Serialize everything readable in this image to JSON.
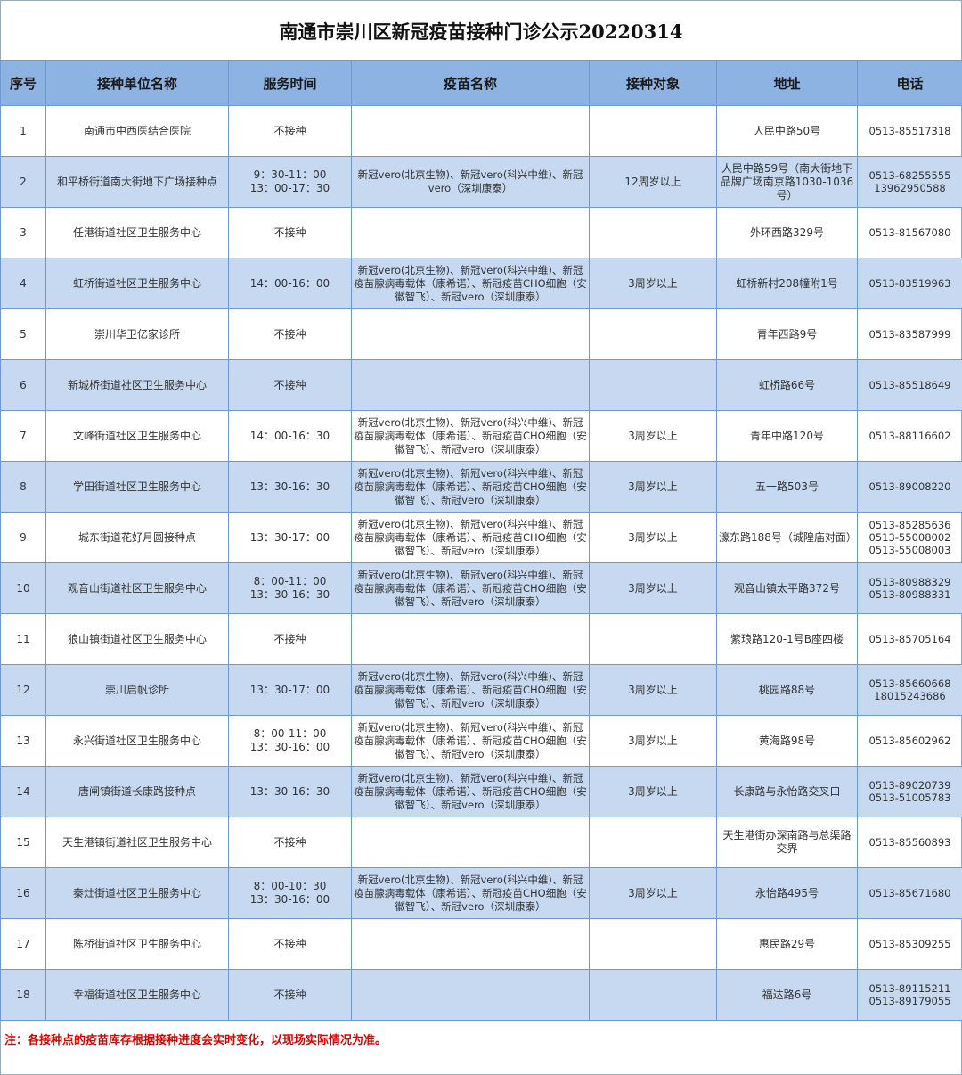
{
  "title": "南通市崇川区新冠疫苗接种门诊公示20220314",
  "columns": [
    "序号",
    "接种单位名称",
    "服务时间",
    "疫苗名称",
    "接种对象",
    "地址",
    "电话"
  ],
  "rows": [
    {
      "no": "1",
      "name": "南通市中西医结合医院",
      "time": "不接种",
      "vaccine": "",
      "target": "",
      "address": "人民中路50号",
      "phone": "0513-85517318"
    },
    {
      "no": "2",
      "name": "和平桥街道南大街地下广场接种点",
      "time": "9：30-11：00\n13：00-17：30",
      "vaccine": "新冠vero(北京生物)、新冠vero(科兴中维)、新冠vero（深圳康泰）",
      "target": "12周岁以上",
      "address": "人民中路59号（南大街地下品牌广场南京路1030-1036号）",
      "phone": "0513-68255555\n13962950588"
    },
    {
      "no": "3",
      "name": "任港街道社区卫生服务中心",
      "time": "不接种",
      "vaccine": "",
      "target": "",
      "address": "外环西路329号",
      "phone": "0513-81567080"
    },
    {
      "no": "4",
      "name": "虹桥街道社区卫生服务中心",
      "time": "14：00-16：00",
      "vaccine": "新冠vero(北京生物)、新冠vero(科兴中维)、新冠疫苗腺病毒载体（康希诺）、新冠疫苗CHO细胞（安徽智飞）、新冠vero（深圳康泰）",
      "target": "3周岁以上",
      "address": "虹桥新村208幢附1号",
      "phone": "0513-83519963"
    },
    {
      "no": "5",
      "name": "崇川华卫亿家诊所",
      "time": "不接种",
      "vaccine": "",
      "target": "",
      "address": "青年西路9号",
      "phone": "0513-83587999"
    },
    {
      "no": "6",
      "name": "新城桥街道社区卫生服务中心",
      "time": "不接种",
      "vaccine": "",
      "target": "",
      "address": "虹桥路66号",
      "phone": "0513-85518649"
    },
    {
      "no": "7",
      "name": "文峰街道社区卫生服务中心",
      "time": "14：00-16：30",
      "vaccine": "新冠vero(北京生物)、新冠vero(科兴中维)、新冠疫苗腺病毒载体（康希诺）、新冠疫苗CHO细胞（安徽智飞）、新冠vero（深圳康泰）",
      "target": "3周岁以上",
      "address": "青年中路120号",
      "phone": "0513-88116602"
    },
    {
      "no": "8",
      "name": "学田街道社区卫生服务中心",
      "time": "13：30-16：30",
      "vaccine": "新冠vero(北京生物)、新冠vero(科兴中维)、新冠疫苗腺病毒载体（康希诺）、新冠疫苗CHO细胞（安徽智飞）、新冠vero（深圳康泰）",
      "target": "3周岁以上",
      "address": "五一路503号",
      "phone": "0513-89008220"
    },
    {
      "no": "9",
      "name": "城东街道花好月圆接种点",
      "time": "13：30-17：00",
      "vaccine": "新冠vero(北京生物)、新冠vero(科兴中维)、新冠疫苗腺病毒载体（康希诺）、新冠疫苗CHO细胞（安徽智飞）、新冠vero（深圳康泰）",
      "target": "3周岁以上",
      "address": "濠东路188号（城隍庙对面）",
      "phone": "0513-85285636\n0513-55008002\n0513-55008003"
    },
    {
      "no": "10",
      "name": "观音山街道社区卫生服务中心",
      "time": "8：00-11：00\n13：30-16：30",
      "vaccine": "新冠vero(北京生物)、新冠vero(科兴中维)、新冠疫苗腺病毒载体（康希诺）、新冠疫苗CHO细胞（安徽智飞）、新冠vero（深圳康泰）",
      "target": "3周岁以上",
      "address": "观音山镇太平路372号",
      "phone": "0513-80988329\n0513-80988331"
    },
    {
      "no": "11",
      "name": "狼山镇街道社区卫生服务中心",
      "time": "不接种",
      "vaccine": "",
      "target": "",
      "address": "紫琅路120-1号B座四楼",
      "phone": "0513-85705164"
    },
    {
      "no": "12",
      "name": "崇川启帆诊所",
      "time": "13：30-17：00",
      "vaccine": "新冠vero(北京生物)、新冠vero(科兴中维)、新冠疫苗腺病毒载体（康希诺）、新冠疫苗CHO细胞（安徽智飞）、新冠vero（深圳康泰）",
      "target": "3周岁以上",
      "address": "桃园路88号",
      "phone": "0513-85660668\n18015243686"
    },
    {
      "no": "13",
      "name": "永兴街道社区卫生服务中心",
      "time": "8：00-11：00\n13：30-16：00",
      "vaccine": "新冠vero(北京生物)、新冠vero(科兴中维)、新冠疫苗腺病毒载体（康希诺）、新冠疫苗CHO细胞（安徽智飞）、新冠vero（深圳康泰）",
      "target": "3周岁以上",
      "address": "黄海路98号",
      "phone": "0513-85602962"
    },
    {
      "no": "14",
      "name": "唐闸镇街道长康路接种点",
      "time": "13：30-16：30",
      "vaccine": "新冠vero(北京生物)、新冠vero(科兴中维)、新冠疫苗腺病毒载体（康希诺）、新冠疫苗CHO细胞（安徽智飞）、新冠vero（深圳康泰）",
      "target": "3周岁以上",
      "address": "长康路与永怡路交叉口",
      "phone": "0513-89020739\n0513-51005783"
    },
    {
      "no": "15",
      "name": "天生港镇街道社区卫生服务中心",
      "time": "不接种",
      "vaccine": "",
      "target": "",
      "address": "天生港街办深南路与总渠路交界",
      "phone": "0513-85560893"
    },
    {
      "no": "16",
      "name": "秦灶街道社区卫生服务中心",
      "time": "8：00-10：30\n13：30-16：00",
      "vaccine": "新冠vero(北京生物)、新冠vero(科兴中维)、新冠疫苗腺病毒载体（康希诺）、新冠疫苗CHO细胞（安徽智飞）、新冠vero（深圳康泰）",
      "target": "3周岁以上",
      "address": "永怡路495号",
      "phone": "0513-85671680"
    },
    {
      "no": "17",
      "name": "陈桥街道社区卫生服务中心",
      "time": "不接种",
      "vaccine": "",
      "target": "",
      "address": "惠民路29号",
      "phone": "0513-85309255"
    },
    {
      "no": "18",
      "name": "幸福街道社区卫生服务中心",
      "time": "不接种",
      "vaccine": "",
      "target": "",
      "address": "福达路6号",
      "phone": "0513-89115211\n0513-89179055"
    }
  ],
  "note": "注：各接种点的疫苗库存根据接种进度会实时变化，以现场实际情况为准。",
  "colors": {
    "header_bg": "#8db3e2",
    "alt_row_bg": "#c6d9f1",
    "border": "#6f98cf",
    "note": "#e00000"
  }
}
